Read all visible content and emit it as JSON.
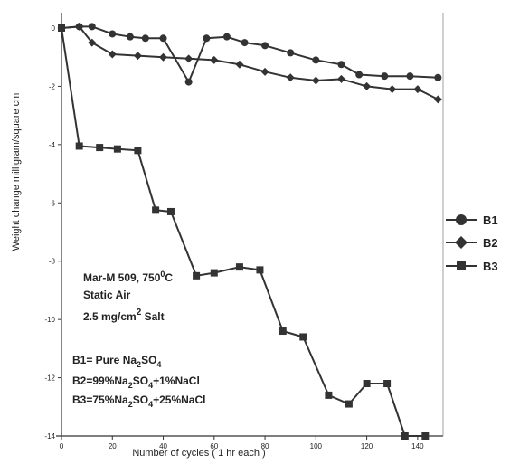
{
  "chart_data": {
    "type": "line",
    "title": "",
    "xlabel": "Number of cycles ( 1 hr each )",
    "ylabel": "Weight change milligram/square cm",
    "xlim": [
      0,
      150
    ],
    "ylim": [
      -14,
      0
    ],
    "x_ticks": [
      "0",
      "20",
      "40",
      "60",
      "80",
      "100",
      "120",
      "140"
    ],
    "y_ticks": [
      "0",
      "-2",
      "-4",
      "-6",
      "-8",
      "-10",
      "-12",
      "-14"
    ],
    "grid": false,
    "legend_position": "right",
    "colors": {
      "line": "#333333",
      "axis": "#333333"
    },
    "series": [
      {
        "name": "B1",
        "marker": "circle",
        "x": [
          0,
          7,
          12,
          20,
          27,
          33,
          40,
          50,
          57,
          65,
          72,
          80,
          90,
          100,
          110,
          117,
          127,
          137,
          148
        ],
        "y": [
          0,
          0.05,
          0.05,
          -0.2,
          -0.3,
          -0.35,
          -0.35,
          -1.85,
          -0.35,
          -0.3,
          -0.5,
          -0.6,
          -0.85,
          -1.1,
          -1.25,
          -1.6,
          -1.65,
          -1.65,
          -1.7
        ]
      },
      {
        "name": "B2",
        "marker": "diamond",
        "x": [
          0,
          7,
          12,
          20,
          30,
          40,
          50,
          60,
          70,
          80,
          90,
          100,
          110,
          120,
          130,
          140,
          148
        ],
        "y": [
          0,
          0.05,
          -0.5,
          -0.9,
          -0.95,
          -1.0,
          -1.05,
          -1.1,
          -1.25,
          -1.5,
          -1.7,
          -1.8,
          -1.75,
          -2.0,
          -2.1,
          -2.1,
          -2.45
        ]
      },
      {
        "name": "B3",
        "marker": "square",
        "x": [
          0,
          7,
          15,
          22,
          30,
          37,
          43,
          53,
          60,
          70,
          78,
          87,
          95,
          105,
          113,
          120,
          128,
          135,
          143
        ],
        "y": [
          0,
          -4.05,
          -4.1,
          -4.15,
          -4.2,
          -6.25,
          -6.3,
          -8.5,
          -8.4,
          -8.2,
          -8.3,
          -10.4,
          -10.6,
          -12.6,
          -12.9,
          -12.2,
          -12.2,
          -14.0,
          -14.0
        ]
      }
    ],
    "annotations": {
      "material": "Mar-M 509, 750",
      "material_sup": "0",
      "material_unit": "C",
      "atmosphere": "Static Air",
      "salt_pre": "2.5 mg/cm",
      "salt_sup": "2",
      "salt_post": " Salt",
      "b1_pre": "B1= Pure Na",
      "b1_sub1": "2",
      "b1_mid": "SO",
      "b1_sub2": "4",
      "b2_pre": "B2=99%Na",
      "b2_sub1": "2",
      "b2_mid": "SO",
      "b2_sub2": "4",
      "b2_post": "+1%NaCl",
      "b3_pre": "B3=75%Na",
      "b3_sub1": "2",
      "b3_mid": "SO",
      "b3_sub2": "4",
      "b3_post": "+25%NaCl"
    }
  }
}
